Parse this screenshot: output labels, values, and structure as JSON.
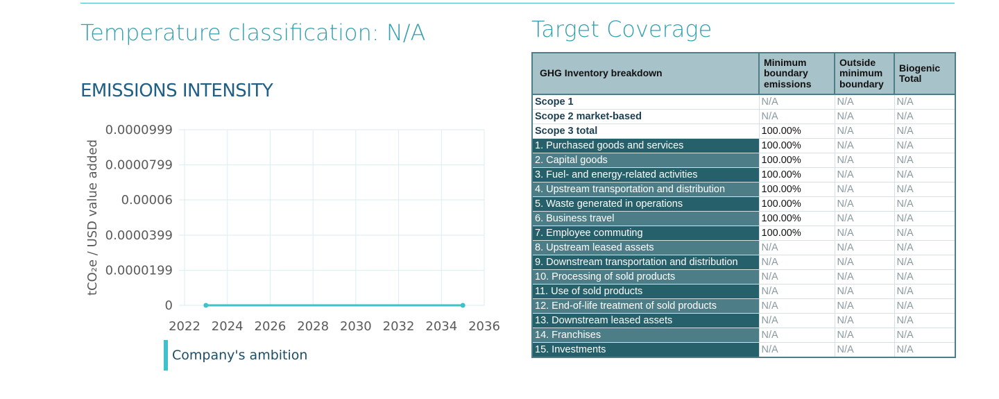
{
  "temperature_title": "Temperature classification: N/A",
  "emissions_title": "EMISSIONS INTENSITY",
  "target_title": "Target Coverage",
  "legend_label": "Company's ambition",
  "colors": {
    "line": "#3fc1c9",
    "grid": "#d9eef1",
    "title_teal": "#2f9fb0",
    "dark_blue": "#1f5f86"
  },
  "chart_data": {
    "type": "line",
    "title": "",
    "xlabel": "",
    "ylabel": "tCO₂e / USD value added",
    "xlim": [
      2022,
      2036
    ],
    "ylim": [
      0,
      9.99e-05
    ],
    "x_ticks": [
      "2022",
      "2024",
      "2026",
      "2028",
      "2030",
      "2032",
      "2034",
      "2036"
    ],
    "y_ticks": [
      "0",
      "0.0000199",
      "0.0000399",
      "0.00006",
      "0.0000799",
      "0.0000999"
    ],
    "grid": true,
    "legend_position": "bottom-left",
    "series": [
      {
        "name": "Company's ambition",
        "x": [
          2023,
          2035
        ],
        "y": [
          0,
          0
        ]
      }
    ]
  },
  "table": {
    "headers": [
      "GHG Inventory breakdown",
      "Minimum boundary emissions",
      "Outside minimum boundary",
      "Biogenic Total"
    ],
    "scope_rows": [
      {
        "label": "Scope 1",
        "values": [
          "N/A",
          "N/A",
          "N/A"
        ]
      },
      {
        "label": "Scope 2 market-based",
        "values": [
          "N/A",
          "N/A",
          "N/A"
        ]
      },
      {
        "label": "Scope 3 total",
        "values": [
          "100.00%",
          "N/A",
          "N/A"
        ]
      }
    ],
    "category_rows": [
      {
        "label": "1. Purchased goods and services",
        "values": [
          "100.00%",
          "N/A",
          "N/A"
        ]
      },
      {
        "label": "2. Capital goods",
        "values": [
          "100.00%",
          "N/A",
          "N/A"
        ]
      },
      {
        "label": "3. Fuel- and energy-related activities",
        "values": [
          "100.00%",
          "N/A",
          "N/A"
        ]
      },
      {
        "label": "4. Upstream transportation and distribution",
        "values": [
          "100.00%",
          "N/A",
          "N/A"
        ]
      },
      {
        "label": "5. Waste generated in operations",
        "values": [
          "100.00%",
          "N/A",
          "N/A"
        ]
      },
      {
        "label": "6. Business travel",
        "values": [
          "100.00%",
          "N/A",
          "N/A"
        ]
      },
      {
        "label": "7. Employee commuting",
        "values": [
          "100.00%",
          "N/A",
          "N/A"
        ]
      },
      {
        "label": "8. Upstream leased assets",
        "values": [
          "N/A",
          "N/A",
          "N/A"
        ]
      },
      {
        "label": "9. Downstream transportation and distribution",
        "values": [
          "N/A",
          "N/A",
          "N/A"
        ]
      },
      {
        "label": "10. Processing of sold products",
        "values": [
          "N/A",
          "N/A",
          "N/A"
        ]
      },
      {
        "label": "11. Use of sold products",
        "values": [
          "N/A",
          "N/A",
          "N/A"
        ]
      },
      {
        "label": "12. End-of-life treatment of sold products",
        "values": [
          "N/A",
          "N/A",
          "N/A"
        ]
      },
      {
        "label": "13. Downstream leased assets",
        "values": [
          "N/A",
          "N/A",
          "N/A"
        ]
      },
      {
        "label": "14. Franchises",
        "values": [
          "N/A",
          "N/A",
          "N/A"
        ]
      },
      {
        "label": "15. Investments",
        "values": [
          "N/A",
          "N/A",
          "N/A"
        ]
      }
    ]
  }
}
